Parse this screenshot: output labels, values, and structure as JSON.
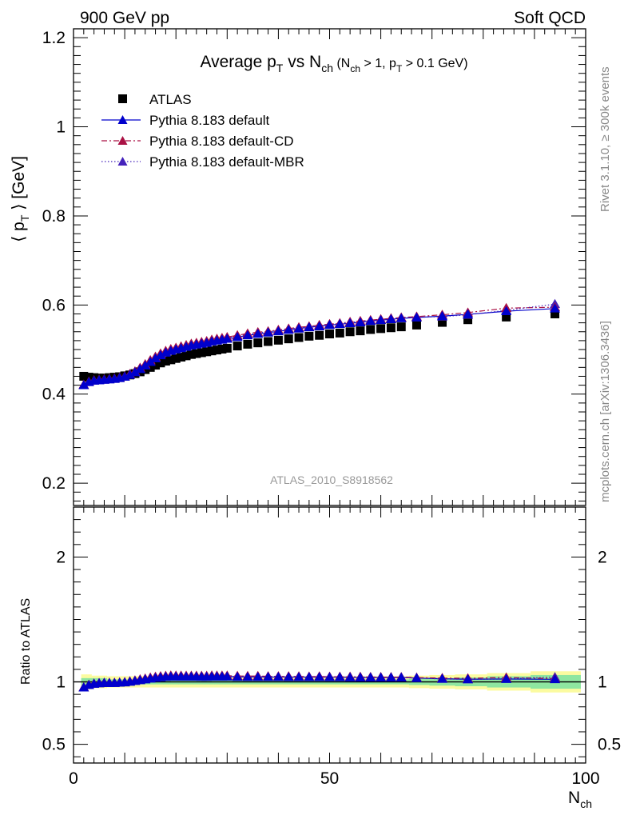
{
  "header": {
    "left": "900 GeV pp",
    "right": "Soft QCD"
  },
  "side_label": {
    "rivet_prefix": "Rivet 3.1.10, ",
    "rivet_ge": "≥",
    "rivet_suffix": " 300k events",
    "mcplots": "mcplots.cern.ch [arXiv:1306.3436]"
  },
  "title": {
    "main": "Average p",
    "main_sub": "T",
    "vs": " vs N",
    "vs_sub": "ch",
    "cond_open": " (N",
    "cond_sub1": "ch",
    "cond_mid": " > 1, p",
    "cond_sub2": "T",
    "cond_end": " > 0.1 GeV)"
  },
  "analysis_id": "ATLAS_2010_S8918562",
  "axes": {
    "y_main_label_open": "⟨ p",
    "y_main_label_sub": "T",
    "y_main_label_close": " ⟩  [GeV]",
    "y_ratio_label": "Ratio to ATLAS",
    "x_label": "N",
    "x_label_sub": "ch"
  },
  "chart_data": {
    "type": "scatter",
    "x": [
      2,
      3,
      4,
      5,
      6,
      7,
      8,
      9,
      10,
      11,
      12,
      13,
      14,
      15,
      16,
      17,
      18,
      19,
      20,
      21,
      22,
      23,
      24,
      25,
      26,
      27,
      28,
      29,
      30,
      32,
      34,
      36,
      38,
      40,
      42,
      44,
      46,
      48,
      50,
      52,
      54,
      56,
      58,
      60,
      62,
      64,
      67,
      72,
      77,
      84.5,
      94
    ],
    "xlim": [
      0,
      100
    ],
    "ylim_main": [
      0.15,
      1.22
    ],
    "ylim_ratio": [
      0.35,
      2.4
    ],
    "x_ticks": [
      0,
      50,
      100
    ],
    "y_ticks_main": [
      0.2,
      0.4,
      0.6,
      0.8,
      1,
      1.2
    ],
    "y_ticks_ratio": [
      0.5,
      1,
      2
    ],
    "series": [
      {
        "name": "ATLAS",
        "marker": "square",
        "color": "#000000",
        "values": [
          0.44,
          0.438,
          0.437,
          0.436,
          0.436,
          0.437,
          0.438,
          0.439,
          0.441,
          0.443,
          0.446,
          0.45,
          0.455,
          0.46,
          0.465,
          0.47,
          0.474,
          0.477,
          0.48,
          0.483,
          0.486,
          0.489,
          0.491,
          0.493,
          0.495,
          0.497,
          0.499,
          0.501,
          0.503,
          0.508,
          0.512,
          0.515,
          0.518,
          0.521,
          0.524,
          0.527,
          0.53,
          0.532,
          0.535,
          0.537,
          0.54,
          0.542,
          0.545,
          0.547,
          0.549,
          0.551,
          0.555,
          0.561,
          0.567,
          0.573,
          0.58
        ]
      },
      {
        "name": "Pythia 8.183 default",
        "marker": "triangle",
        "line": "solid",
        "color": "#0000cc",
        "values": [
          0.42,
          0.427,
          0.43,
          0.431,
          0.432,
          0.433,
          0.434,
          0.436,
          0.439,
          0.443,
          0.449,
          0.456,
          0.464,
          0.472,
          0.48,
          0.487,
          0.493,
          0.497,
          0.5,
          0.503,
          0.506,
          0.509,
          0.511,
          0.513,
          0.515,
          0.518,
          0.52,
          0.522,
          0.524,
          0.528,
          0.532,
          0.535,
          0.538,
          0.541,
          0.544,
          0.547,
          0.55,
          0.552,
          0.555,
          0.557,
          0.559,
          0.561,
          0.564,
          0.566,
          0.568,
          0.57,
          0.572,
          0.575,
          0.579,
          0.586,
          0.592
        ]
      },
      {
        "name": "Pythia 8.183 default-CD",
        "marker": "triangle",
        "line": "dashdot",
        "color": "#aa1144",
        "values": [
          0.421,
          0.428,
          0.431,
          0.432,
          0.433,
          0.434,
          0.435,
          0.437,
          0.44,
          0.445,
          0.451,
          0.459,
          0.467,
          0.476,
          0.484,
          0.491,
          0.497,
          0.501,
          0.504,
          0.507,
          0.51,
          0.513,
          0.515,
          0.517,
          0.519,
          0.522,
          0.524,
          0.526,
          0.528,
          0.532,
          0.536,
          0.539,
          0.541,
          0.544,
          0.547,
          0.55,
          0.552,
          0.555,
          0.557,
          0.559,
          0.562,
          0.564,
          0.566,
          0.568,
          0.57,
          0.572,
          0.574,
          0.578,
          0.583,
          0.593,
          0.595
        ]
      },
      {
        "name": "Pythia 8.183 default-MBR",
        "marker": "triangle",
        "line": "dotted",
        "color": "#4422bb",
        "values": [
          0.42,
          0.427,
          0.43,
          0.431,
          0.432,
          0.433,
          0.434,
          0.436,
          0.439,
          0.444,
          0.45,
          0.457,
          0.465,
          0.474,
          0.482,
          0.489,
          0.495,
          0.499,
          0.502,
          0.505,
          0.508,
          0.511,
          0.513,
          0.515,
          0.517,
          0.52,
          0.522,
          0.524,
          0.526,
          0.53,
          0.534,
          0.537,
          0.54,
          0.543,
          0.546,
          0.549,
          0.551,
          0.554,
          0.556,
          0.558,
          0.561,
          0.563,
          0.565,
          0.567,
          0.569,
          0.571,
          0.572,
          0.574,
          0.578,
          0.588,
          0.602
        ]
      }
    ],
    "ratio_band": {
      "inner_color": "#8ee6a0",
      "outer_color": "#fbfba0",
      "inner_halfwidth": [
        0.03,
        0.03,
        0.03,
        0.03,
        0.03,
        0.02,
        0.02,
        0.02,
        0.02,
        0.02,
        0.02,
        0.02,
        0.02,
        0.02,
        0.02,
        0.02,
        0.02,
        0.02,
        0.02,
        0.02,
        0.02,
        0.02,
        0.02,
        0.02,
        0.02,
        0.02,
        0.02,
        0.02,
        0.02,
        0.02,
        0.02,
        0.02,
        0.02,
        0.02,
        0.02,
        0.02,
        0.02,
        0.02,
        0.02,
        0.02,
        0.02,
        0.02,
        0.02,
        0.02,
        0.02,
        0.02,
        0.025,
        0.03,
        0.035,
        0.045,
        0.055
      ],
      "outer_halfwidth": [
        0.06,
        0.06,
        0.05,
        0.05,
        0.05,
        0.045,
        0.045,
        0.045,
        0.045,
        0.045,
        0.045,
        0.045,
        0.045,
        0.045,
        0.045,
        0.045,
        0.045,
        0.045,
        0.045,
        0.045,
        0.045,
        0.045,
        0.045,
        0.045,
        0.045,
        0.045,
        0.045,
        0.045,
        0.045,
        0.045,
        0.045,
        0.045,
        0.045,
        0.045,
        0.045,
        0.045,
        0.045,
        0.045,
        0.045,
        0.045,
        0.045,
        0.045,
        0.045,
        0.045,
        0.045,
        0.045,
        0.05,
        0.055,
        0.06,
        0.07,
        0.085
      ]
    }
  }
}
